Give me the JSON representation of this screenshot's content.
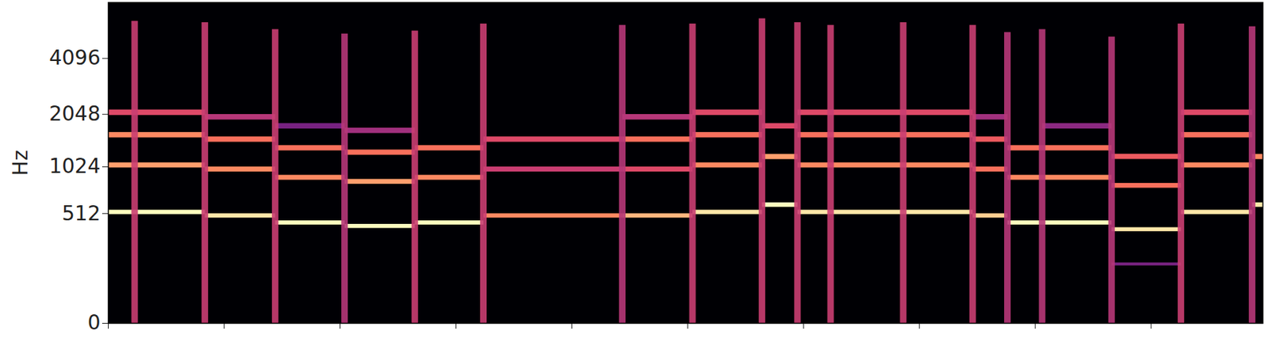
{
  "chart_data": {
    "type": "spectrogram",
    "y_label": "Hz",
    "color": "magma",
    "level_range": [
      0,
      1
    ],
    "xlim": [
      0,
      9.965
    ],
    "xticks": [
      0,
      1,
      2,
      3,
      4,
      5,
      6,
      7,
      8,
      9
    ],
    "ylim": [
      0,
      8000
    ],
    "yticks": [
      0,
      512,
      1024,
      2048,
      4096
    ],
    "tick_labels": "y",
    "notes": [
      {
        "start": 0.0,
        "end": 0.836,
        "partials": [
          [
            523,
            1.0
          ],
          [
            1046,
            0.8
          ],
          [
            1568,
            0.75
          ],
          [
            2093,
            0.6
          ]
        ]
      },
      {
        "start": 0.836,
        "end": 1.443,
        "partials": [
          [
            494,
            0.95
          ],
          [
            988,
            0.75
          ],
          [
            1480,
            0.7
          ],
          [
            1976,
            0.5
          ]
        ]
      },
      {
        "start": 1.443,
        "end": 2.042,
        "partials": [
          [
            440,
            1.0
          ],
          [
            880,
            0.75
          ],
          [
            1320,
            0.7
          ],
          [
            1760,
            0.35
          ]
        ]
      },
      {
        "start": 2.042,
        "end": 2.648,
        "partials": [
          [
            415,
            1.0
          ],
          [
            830,
            0.8
          ],
          [
            1245,
            0.7
          ],
          [
            1660,
            0.45
          ]
        ]
      },
      {
        "start": 2.648,
        "end": 3.24,
        "partials": [
          [
            440,
            1.0
          ],
          [
            880,
            0.75
          ],
          [
            1320,
            0.7
          ]
        ]
      },
      {
        "start": 3.24,
        "end": 4.439,
        "partials": [
          [
            494,
            0.75
          ],
          [
            988,
            0.55
          ],
          [
            1480,
            0.6
          ]
        ]
      },
      {
        "start": 4.439,
        "end": 5.045,
        "partials": [
          [
            494,
            0.85
          ],
          [
            988,
            0.6
          ],
          [
            1480,
            0.7
          ],
          [
            1976,
            0.5
          ]
        ]
      },
      {
        "start": 5.045,
        "end": 5.645,
        "partials": [
          [
            523,
            0.95
          ],
          [
            1046,
            0.75
          ],
          [
            1568,
            0.7
          ],
          [
            2093,
            0.6
          ]
        ]
      },
      {
        "start": 5.645,
        "end": 5.951,
        "partials": [
          [
            587,
            1.0
          ],
          [
            1174,
            0.8
          ],
          [
            1760,
            0.6
          ]
        ]
      },
      {
        "start": 5.951,
        "end": 6.237,
        "partials": [
          [
            523,
            0.95
          ],
          [
            1046,
            0.75
          ],
          [
            1568,
            0.7
          ],
          [
            2093,
            0.6
          ]
        ]
      },
      {
        "start": 6.237,
        "end": 6.864,
        "partials": [
          [
            523,
            0.95
          ],
          [
            1046,
            0.75
          ],
          [
            1568,
            0.7
          ],
          [
            2093,
            0.6
          ]
        ]
      },
      {
        "start": 6.864,
        "end": 7.463,
        "partials": [
          [
            523,
            0.95
          ],
          [
            1046,
            0.75
          ],
          [
            1568,
            0.7
          ],
          [
            2093,
            0.6
          ]
        ]
      },
      {
        "start": 7.463,
        "end": 7.763,
        "partials": [
          [
            494,
            0.9
          ],
          [
            988,
            0.7
          ],
          [
            1480,
            0.65
          ],
          [
            1976,
            0.45
          ]
        ]
      },
      {
        "start": 7.763,
        "end": 8.063,
        "partials": [
          [
            440,
            1.0
          ],
          [
            880,
            0.75
          ],
          [
            1320,
            0.7
          ]
        ]
      },
      {
        "start": 8.063,
        "end": 8.662,
        "partials": [
          [
            440,
            1.0
          ],
          [
            880,
            0.75
          ],
          [
            1320,
            0.7
          ],
          [
            1760,
            0.4
          ]
        ]
      },
      {
        "start": 8.662,
        "end": 9.261,
        "partials": [
          [
            392,
            0.95
          ],
          [
            784,
            0.7
          ],
          [
            1176,
            0.65
          ],
          [
            196,
            0.35
          ]
        ]
      },
      {
        "start": 9.261,
        "end": 9.875,
        "partials": [
          [
            523,
            0.95
          ],
          [
            1046,
            0.75
          ],
          [
            1568,
            0.7
          ],
          [
            2093,
            0.6
          ]
        ]
      },
      {
        "start": 9.875,
        "end": 9.965,
        "partials": [
          [
            587,
            0.95
          ],
          [
            1174,
            0.75
          ]
        ]
      }
    ],
    "onsets": [
      {
        "t": 0.23,
        "top": 6400,
        "level": 0.55
      },
      {
        "t": 0.836,
        "top": 6300,
        "level": 0.55
      },
      {
        "t": 1.443,
        "top": 5800,
        "level": 0.55
      },
      {
        "t": 2.042,
        "top": 5500,
        "level": 0.5
      },
      {
        "t": 2.648,
        "top": 5700,
        "level": 0.55
      },
      {
        "t": 3.24,
        "top": 6200,
        "level": 0.55
      },
      {
        "t": 4.439,
        "top": 6100,
        "level": 0.5
      },
      {
        "t": 5.045,
        "top": 6200,
        "level": 0.55
      },
      {
        "t": 5.645,
        "top": 6600,
        "level": 0.55
      },
      {
        "t": 5.951,
        "top": 6300,
        "level": 0.55
      },
      {
        "t": 6.237,
        "top": 6100,
        "level": 0.55
      },
      {
        "t": 6.864,
        "top": 6300,
        "level": 0.55
      },
      {
        "t": 7.463,
        "top": 6100,
        "level": 0.55
      },
      {
        "t": 7.763,
        "top": 5600,
        "level": 0.5
      },
      {
        "t": 8.063,
        "top": 5800,
        "level": 0.5
      },
      {
        "t": 8.662,
        "top": 5300,
        "level": 0.5
      },
      {
        "t": 9.261,
        "top": 6200,
        "level": 0.55
      },
      {
        "t": 9.875,
        "top": 6000,
        "level": 0.5
      }
    ]
  }
}
